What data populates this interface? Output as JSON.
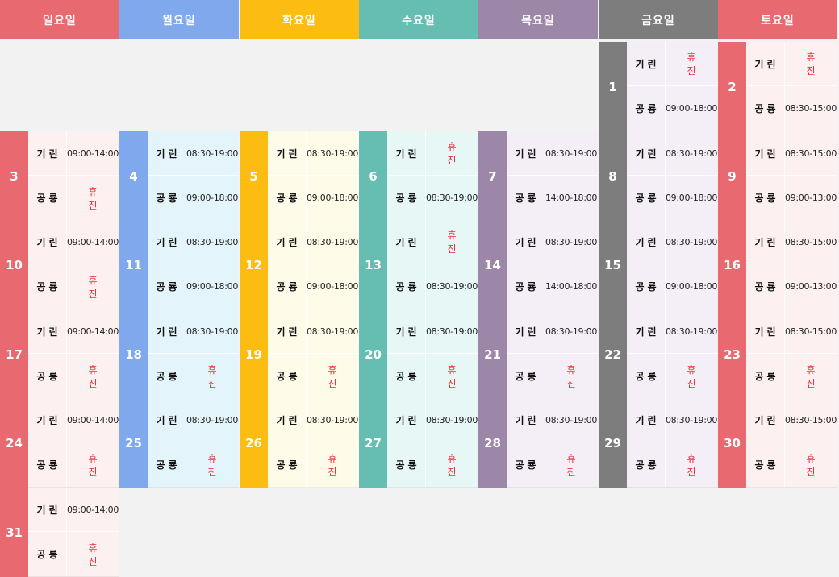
{
  "weekdays": [
    "일요일",
    "월요일",
    "화요일",
    "수요일",
    "목요일",
    "금요일",
    "토요일"
  ],
  "colors": {
    "day_headers": [
      "#e8696f",
      "#80a8ec",
      "#fdbc12",
      "#66bdb1",
      "#9d87a8",
      "#7d7d7d",
      "#e8696f"
    ],
    "cell_backgrounds": [
      "#fdf0f0",
      "#e4f4fb",
      "#fefbe8",
      "#e7f7f5",
      "#f4eff6",
      "#f4eff6",
      "#fdf0f0"
    ],
    "closed_text": "#e8323c",
    "page_background": "#f2f2f2"
  },
  "days": [
    {
      "num": "1",
      "rows": [
        {
          "store": "기린",
          "hours": "휴진"
        },
        {
          "store": "공룡",
          "hours": "09:00-18:00"
        }
      ]
    },
    {
      "num": "2",
      "rows": [
        {
          "store": "기린",
          "hours": "휴진"
        },
        {
          "store": "공룡",
          "hours": "08:30-15:00"
        }
      ]
    },
    {
      "num": "3",
      "rows": [
        {
          "store": "기린",
          "hours": "09:00-14:00"
        },
        {
          "store": "공룡",
          "hours": "휴진"
        }
      ]
    },
    {
      "num": "4",
      "rows": [
        {
          "store": "기린",
          "hours": "08:30-19:00"
        },
        {
          "store": "공룡",
          "hours": "09:00-18:00"
        }
      ]
    },
    {
      "num": "5",
      "rows": [
        {
          "store": "기린",
          "hours": "08:30-19:00"
        },
        {
          "store": "공룡",
          "hours": "09:00-18:00"
        }
      ]
    },
    {
      "num": "6",
      "rows": [
        {
          "store": "기린",
          "hours": "휴진"
        },
        {
          "store": "공룡",
          "hours": "08:30-19:00"
        }
      ]
    },
    {
      "num": "7",
      "rows": [
        {
          "store": "기린",
          "hours": "08:30-19:00"
        },
        {
          "store": "공룡",
          "hours": "14:00-18:00"
        }
      ]
    },
    {
      "num": "8",
      "rows": [
        {
          "store": "기린",
          "hours": "08:30-19:00"
        },
        {
          "store": "공룡",
          "hours": "09:00-18:00"
        }
      ]
    },
    {
      "num": "9",
      "rows": [
        {
          "store": "기린",
          "hours": "08:30-15:00"
        },
        {
          "store": "공룡",
          "hours": "09:00-13:00"
        }
      ]
    },
    {
      "num": "10",
      "rows": [
        {
          "store": "기린",
          "hours": "09:00-14:00"
        },
        {
          "store": "공룡",
          "hours": "휴진"
        }
      ]
    },
    {
      "num": "11",
      "rows": [
        {
          "store": "기린",
          "hours": "08:30-19:00"
        },
        {
          "store": "공룡",
          "hours": "09:00-18:00"
        }
      ]
    },
    {
      "num": "12",
      "rows": [
        {
          "store": "기린",
          "hours": "08:30-19:00"
        },
        {
          "store": "공룡",
          "hours": "09:00-18:00"
        }
      ]
    },
    {
      "num": "13",
      "rows": [
        {
          "store": "기린",
          "hours": "휴진"
        },
        {
          "store": "공룡",
          "hours": "08:30-19:00"
        }
      ]
    },
    {
      "num": "14",
      "rows": [
        {
          "store": "기린",
          "hours": "08:30-19:00"
        },
        {
          "store": "공룡",
          "hours": "14:00-18:00"
        }
      ]
    },
    {
      "num": "15",
      "rows": [
        {
          "store": "기린",
          "hours": "08:30-19:00"
        },
        {
          "store": "공룡",
          "hours": "09:00-18:00"
        }
      ]
    },
    {
      "num": "16",
      "rows": [
        {
          "store": "기린",
          "hours": "08:30-15:00"
        },
        {
          "store": "공룡",
          "hours": "09:00-13:00"
        }
      ]
    },
    {
      "num": "17",
      "rows": [
        {
          "store": "기린",
          "hours": "09:00-14:00"
        },
        {
          "store": "공룡",
          "hours": "휴진"
        }
      ]
    },
    {
      "num": "18",
      "rows": [
        {
          "store": "기린",
          "hours": "08:30-19:00"
        },
        {
          "store": "공룡",
          "hours": "휴진"
        }
      ]
    },
    {
      "num": "19",
      "rows": [
        {
          "store": "기린",
          "hours": "08:30-19:00"
        },
        {
          "store": "공룡",
          "hours": "휴진"
        }
      ]
    },
    {
      "num": "20",
      "rows": [
        {
          "store": "기린",
          "hours": "08:30-19:00"
        },
        {
          "store": "공룡",
          "hours": "휴진"
        }
      ]
    },
    {
      "num": "21",
      "rows": [
        {
          "store": "기린",
          "hours": "08:30-19:00"
        },
        {
          "store": "공룡",
          "hours": "휴진"
        }
      ]
    },
    {
      "num": "22",
      "rows": [
        {
          "store": "기린",
          "hours": "08:30-19:00"
        },
        {
          "store": "공룡",
          "hours": "휴진"
        }
      ]
    },
    {
      "num": "23",
      "rows": [
        {
          "store": "기린",
          "hours": "08:30-15:00"
        },
        {
          "store": "공룡",
          "hours": "휴진"
        }
      ]
    },
    {
      "num": "24",
      "rows": [
        {
          "store": "기린",
          "hours": "09:00-14:00"
        },
        {
          "store": "공룡",
          "hours": "휴진"
        }
      ]
    },
    {
      "num": "25",
      "rows": [
        {
          "store": "기린",
          "hours": "08:30-19:00"
        },
        {
          "store": "공룡",
          "hours": "휴진"
        }
      ]
    },
    {
      "num": "26",
      "rows": [
        {
          "store": "기린",
          "hours": "08:30-19:00"
        },
        {
          "store": "공룡",
          "hours": "휴진"
        }
      ]
    },
    {
      "num": "27",
      "rows": [
        {
          "store": "기린",
          "hours": "08:30-19:00"
        },
        {
          "store": "공룡",
          "hours": "휴진"
        }
      ]
    },
    {
      "num": "28",
      "rows": [
        {
          "store": "기린",
          "hours": "08:30-19:00"
        },
        {
          "store": "공룡",
          "hours": "휴진"
        }
      ]
    },
    {
      "num": "29",
      "rows": [
        {
          "store": "기린",
          "hours": "08:30-19:00"
        },
        {
          "store": "공룡",
          "hours": "휴진"
        }
      ]
    },
    {
      "num": "30",
      "rows": [
        {
          "store": "기린",
          "hours": "08:30-15:00"
        },
        {
          "store": "공룡",
          "hours": "휴진"
        }
      ]
    },
    {
      "num": "31",
      "rows": [
        {
          "store": "기린",
          "hours": "09:00-14:00"
        },
        {
          "store": "공룡",
          "hours": "휴진"
        }
      ]
    }
  ]
}
